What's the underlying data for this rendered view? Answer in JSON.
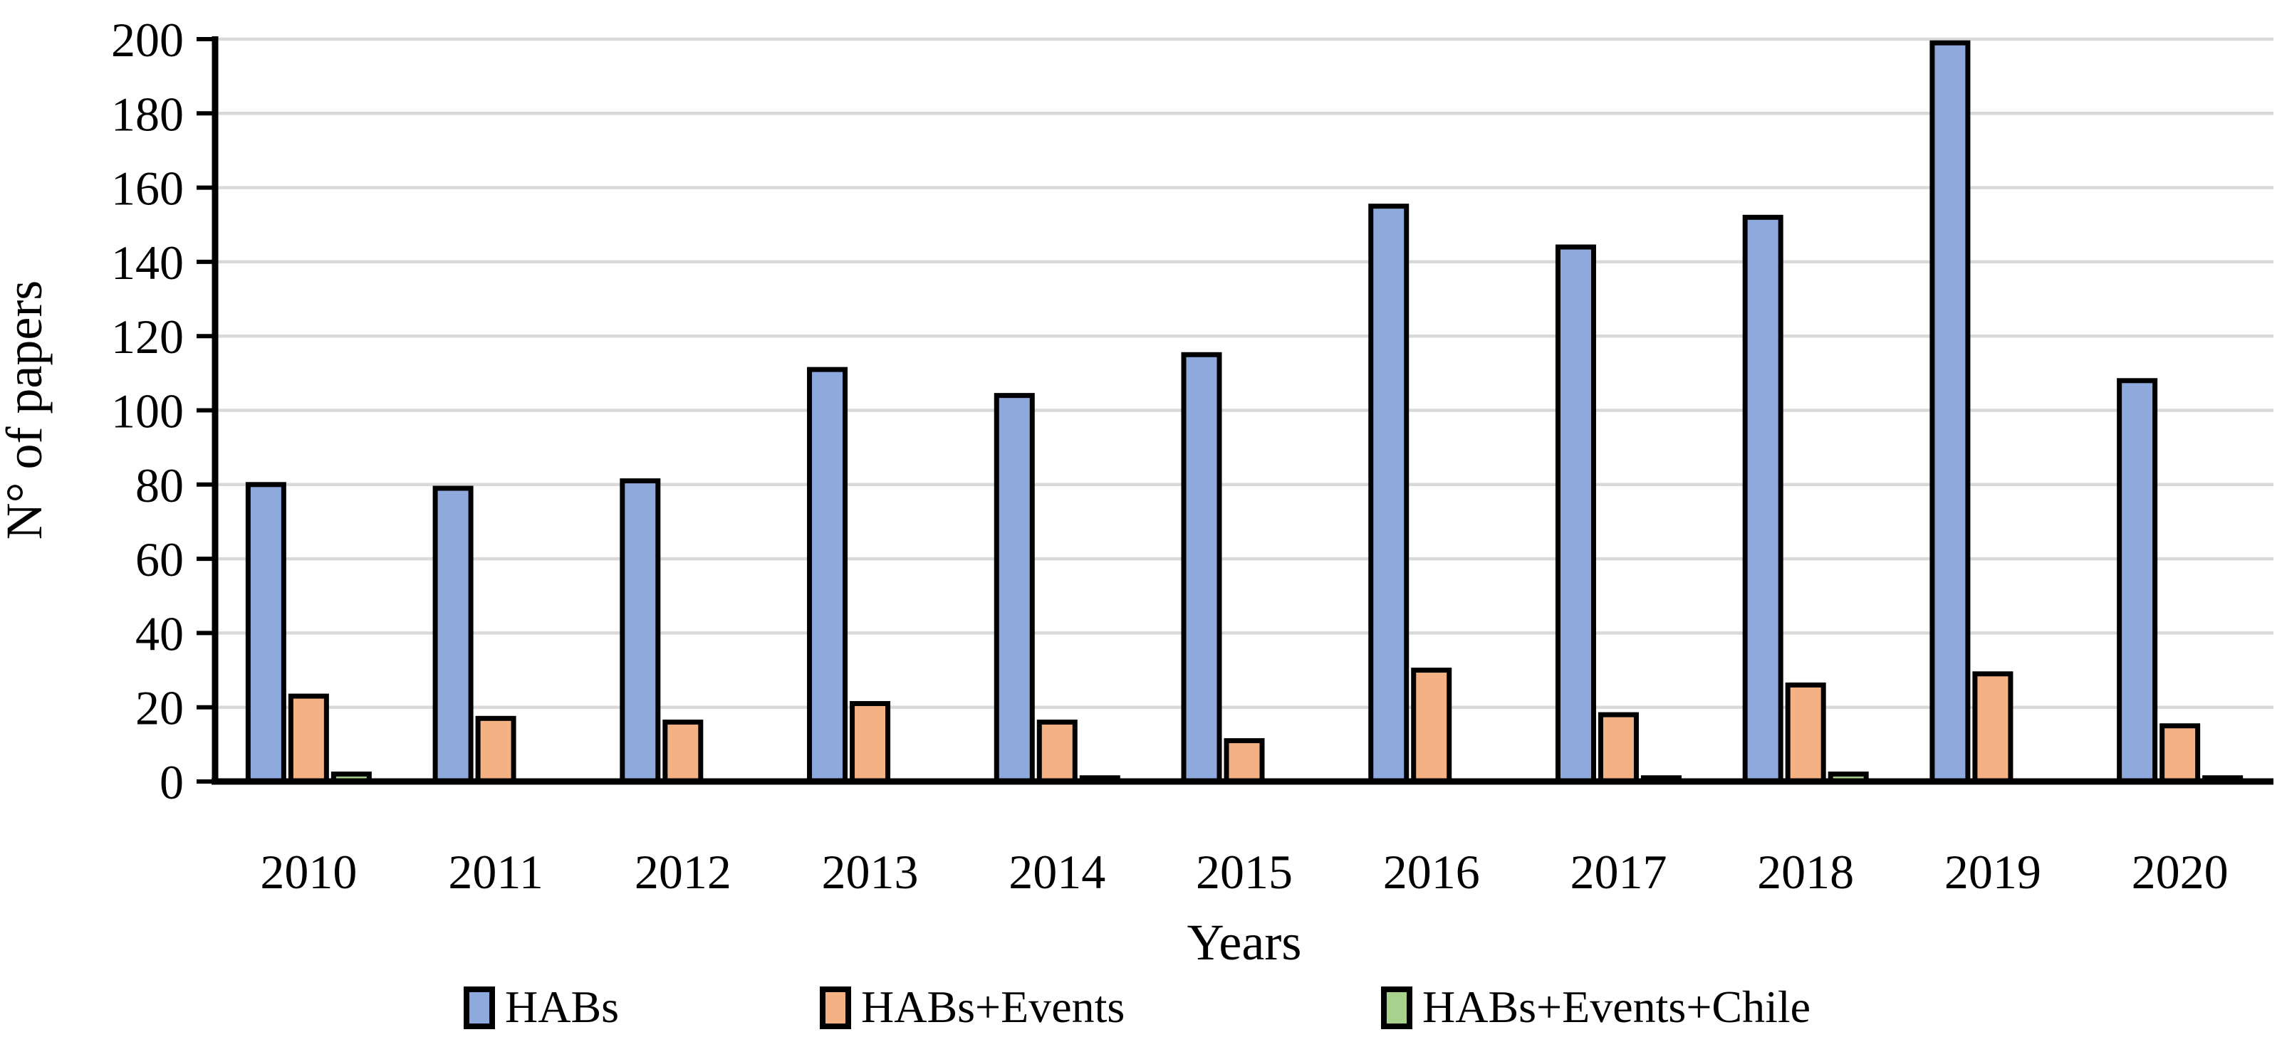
{
  "page": {
    "background": "#ffffff"
  },
  "chart_data": {
    "type": "bar",
    "title": "",
    "categories": [
      "2010",
      "2011",
      "2012",
      "2013",
      "2014",
      "2015",
      "2016",
      "2017",
      "2018",
      "2019",
      "2020"
    ],
    "series": [
      {
        "name": "HABs",
        "color": "#8EA9DB",
        "values": [
          80,
          79,
          81,
          111,
          104,
          115,
          155,
          144,
          152,
          199,
          108
        ]
      },
      {
        "name": "HABs+Events",
        "color": "#F4B183",
        "values": [
          23,
          17,
          16,
          21,
          16,
          11,
          30,
          18,
          26,
          29,
          15
        ]
      },
      {
        "name": "HABs+Events+Chile",
        "color": "#A9D18E",
        "values": [
          2,
          0,
          0,
          0,
          1,
          0,
          0,
          1,
          2,
          0,
          1
        ]
      }
    ],
    "xlabel": "Years",
    "ylabel": "N° of papers",
    "ylim": [
      0,
      200
    ],
    "ytick_step": 20,
    "yticks": [
      0,
      20,
      40,
      60,
      80,
      100,
      120,
      140,
      160,
      180,
      200
    ],
    "grid": true,
    "legend_position": "bottom",
    "colors": {
      "gridline": "#D9D9D9",
      "axis": "#000000",
      "bar_border": "#000000",
      "text": "#000000"
    }
  }
}
